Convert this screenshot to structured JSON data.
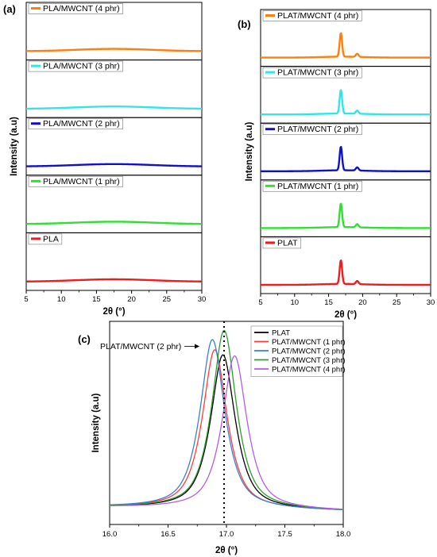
{
  "panels": {
    "a": {
      "label": "(a)"
    },
    "b": {
      "label": "(b)"
    },
    "c": {
      "label": "(c)"
    }
  },
  "colors": {
    "orange": "#ff7f0e",
    "cyan": "#33e5e5",
    "blue": "#1010c8",
    "green": "#33dd33",
    "red": "#ee1c1c",
    "black": "#000000",
    "c_red": "#ff3b3b",
    "c_blue": "#3a7fd5",
    "c_green": "#2ca02c",
    "c_purple": "#b45de6"
  },
  "chart_data": [
    {
      "id": "a",
      "type": "line",
      "xlabel": "2θ (°)",
      "ylabel": "Intensity (a.u)",
      "xlim": [
        5,
        30
      ],
      "xticks": [
        "5",
        "10",
        "15",
        "20",
        "25",
        "30"
      ],
      "stacked": true,
      "series": [
        {
          "name": "PLA/MWCNT (4 phr)",
          "color": "orange"
        },
        {
          "name": "PLA/MWCNT (3 phr)",
          "color": "cyan"
        },
        {
          "name": "PLA/MWCNT (2 phr)",
          "color": "blue"
        },
        {
          "name": "PLA/MWCNT (1 phr)",
          "color": "green"
        },
        {
          "name": "PLA",
          "color": "red"
        }
      ]
    },
    {
      "id": "b",
      "type": "line",
      "xlabel": "2θ (°)",
      "ylabel": "Intensity (a.u)",
      "xlim": [
        5,
        30
      ],
      "xticks": [
        "5",
        "10",
        "15",
        "20",
        "25",
        "30"
      ],
      "stacked": true,
      "peaks": [
        16.8,
        19.2
      ],
      "series": [
        {
          "name": "PLAT/MWCNT (4 phr)",
          "color": "orange"
        },
        {
          "name": "PLAT/MWCNT (3 phr)",
          "color": "cyan"
        },
        {
          "name": "PLAT/MWCNT (2 phr)",
          "color": "blue"
        },
        {
          "name": "PLAT/MWCNT (1 phr)",
          "color": "green"
        },
        {
          "name": "PLAT",
          "color": "red"
        }
      ]
    },
    {
      "id": "c",
      "type": "line",
      "xlabel": "2θ (°)",
      "ylabel": "Intensity (a.u)",
      "xlim": [
        16.0,
        18.0
      ],
      "xticks": [
        "16.0",
        "16.5",
        "17.0",
        "17.5",
        "18.0"
      ],
      "reference_line_x": 16.98,
      "annotation": "PLAT/MWCNT (2 phr)",
      "legend": "top-right",
      "series": [
        {
          "name": "PLAT",
          "color": "black",
          "center": 16.97,
          "peak": 0.835
        },
        {
          "name": "PLAT/MWCNT (1 phr)",
          "color": "c_red",
          "center": 16.9,
          "peak": 0.86
        },
        {
          "name": "PLAT/MWCNT (2 phr)",
          "color": "c_blue",
          "center": 16.88,
          "peak": 0.91
        },
        {
          "name": "PLAT/MWCNT (3 phr)",
          "color": "c_green",
          "center": 16.98,
          "peak": 0.955
        },
        {
          "name": "PLAT/MWCNT (4 phr)",
          "color": "c_purple",
          "center": 17.07,
          "peak": 0.83
        }
      ]
    }
  ]
}
